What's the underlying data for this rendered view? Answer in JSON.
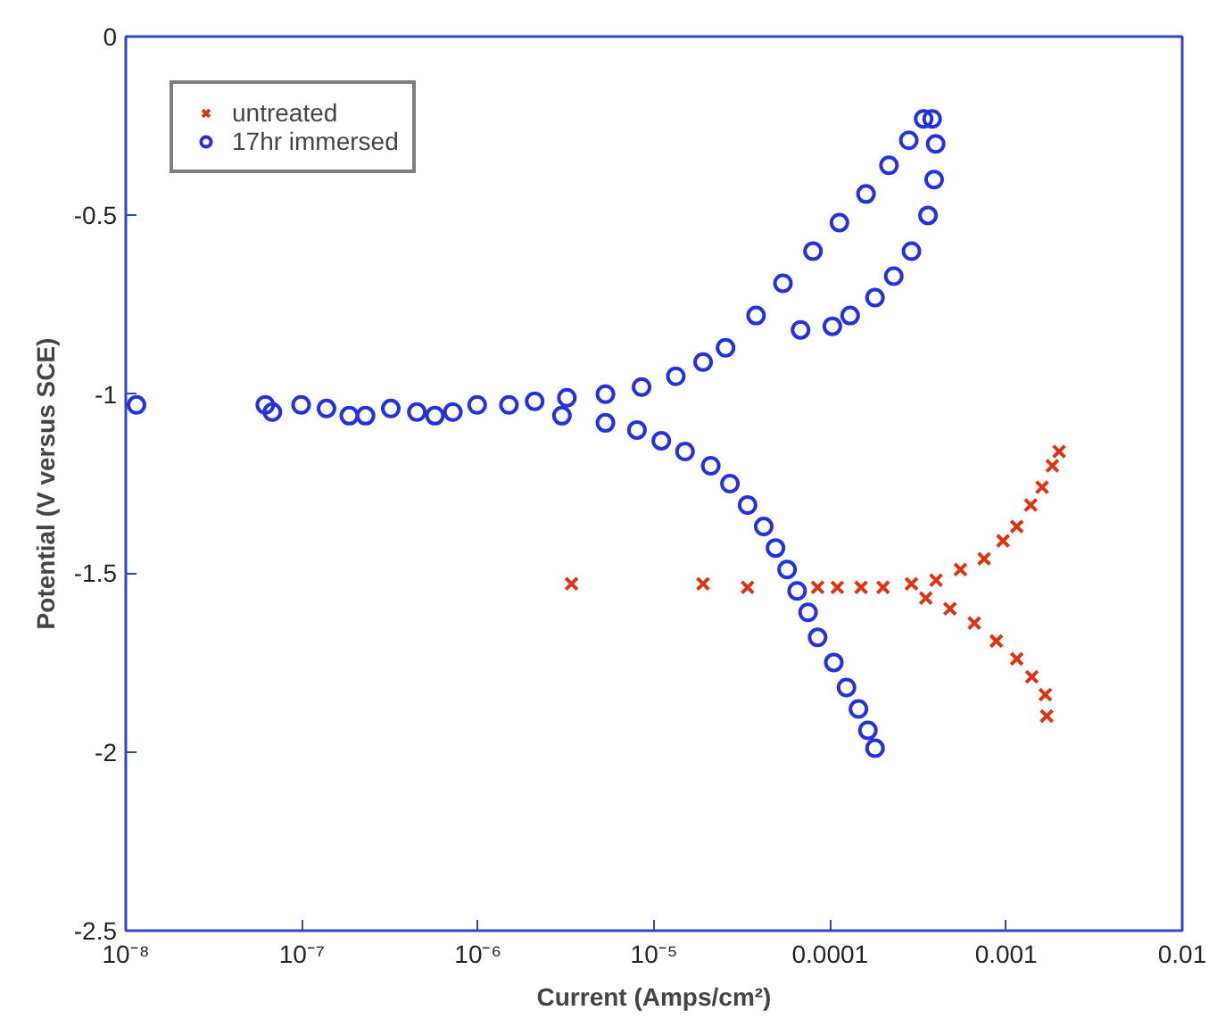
{
  "chart_data": {
    "type": "scatter",
    "xlabel": "Current (Amps/cm²)",
    "ylabel": "Potential (V versus SCE)",
    "log": "x",
    "xlim": [
      1e-08,
      0.01
    ],
    "ylim": [
      -2.5,
      0
    ],
    "xticks": [
      {
        "value": 1e-08,
        "label": "10⁻⁸"
      },
      {
        "value": 1e-07,
        "label": "10⁻⁷"
      },
      {
        "value": 1e-06,
        "label": "10⁻⁶"
      },
      {
        "value": 1e-05,
        "label": "10⁻⁵"
      },
      {
        "value": 0.0001,
        "label": "0.0001"
      },
      {
        "value": 0.001,
        "label": "0.001"
      },
      {
        "value": 0.01,
        "label": "0.01"
      }
    ],
    "yticks": [
      0,
      -0.5,
      -1,
      -1.5,
      -2,
      -2.5
    ],
    "grid": false,
    "legend": "top left",
    "series": [
      {
        "name": "untreated",
        "color": "#dd3311",
        "marker": "cross",
        "x": [
          3.4e-06,
          1.9e-05,
          3.4e-05,
          8.5e-05,
          0.00011,
          0.00015,
          0.0002,
          0.00029,
          0.0004,
          0.00055,
          0.00075,
          0.00096,
          0.00115,
          0.00138,
          0.0016,
          0.00183,
          0.002,
          0.00035,
          0.00048,
          0.00066,
          0.00088,
          0.00115,
          0.0014,
          0.00167,
          0.0017
        ],
        "values": [
          -1.53,
          -1.53,
          -1.54,
          -1.54,
          -1.54,
          -1.54,
          -1.54,
          -1.53,
          -1.52,
          -1.49,
          -1.46,
          -1.41,
          -1.37,
          -1.31,
          -1.26,
          -1.2,
          -1.16,
          -1.57,
          -1.6,
          -1.64,
          -1.69,
          -1.74,
          -1.79,
          -1.84,
          -1.9
        ]
      },
      {
        "name": "17hr immersed",
        "color": "#2233dd",
        "marker": "circle",
        "x": [
          1.15e-08,
          6.2e-08,
          6.8e-08,
          9.9e-08,
          1.38e-07,
          1.86e-07,
          2.3e-07,
          3.2e-07,
          4.5e-07,
          5.7e-07,
          7.2e-07,
          9.9e-07,
          1.5e-06,
          2.1e-06,
          3.2e-06,
          5.3e-06,
          8.5e-06,
          1.33e-05,
          1.9e-05,
          2.55e-05,
          3.8e-05,
          5.4e-05,
          8e-05,
          0.000113,
          0.00016,
          0.000216,
          0.00028,
          0.00034,
          0.00038,
          0.000398,
          0.00039,
          0.00036,
          0.00029,
          0.00023,
          0.00018,
          0.00013,
          0.000103,
          6.8e-05,
          3e-06,
          5.3e-06,
          8e-06,
          1.1e-05,
          1.5e-05,
          2.1e-05,
          2.7e-05,
          3.4e-05,
          4.2e-05,
          4.9e-05,
          5.7e-05,
          6.5e-05,
          7.5e-05,
          8.5e-05,
          0.000105,
          0.000124,
          0.000145,
          0.000164,
          0.00018
        ],
        "values": [
          -1.03,
          -1.03,
          -1.05,
          -1.03,
          -1.04,
          -1.06,
          -1.06,
          -1.04,
          -1.05,
          -1.06,
          -1.05,
          -1.03,
          -1.03,
          -1.02,
          -1.01,
          -1.0,
          -0.98,
          -0.95,
          -0.91,
          -0.87,
          -0.78,
          -0.69,
          -0.6,
          -0.52,
          -0.44,
          -0.36,
          -0.29,
          -0.23,
          -0.23,
          -0.3,
          -0.4,
          -0.5,
          -0.6,
          -0.67,
          -0.73,
          -0.78,
          -0.81,
          -0.82,
          -1.06,
          -1.08,
          -1.1,
          -1.13,
          -1.16,
          -1.2,
          -1.25,
          -1.31,
          -1.37,
          -1.43,
          -1.49,
          -1.55,
          -1.61,
          -1.68,
          -1.75,
          -1.82,
          -1.88,
          -1.94,
          -1.99
        ]
      }
    ]
  }
}
